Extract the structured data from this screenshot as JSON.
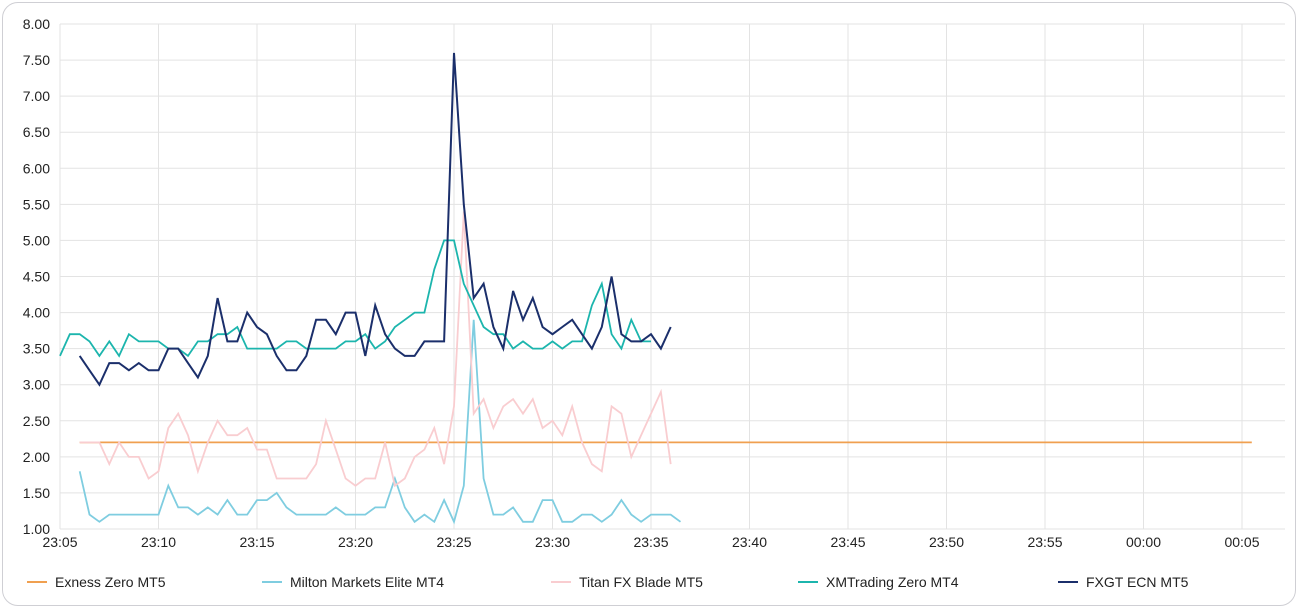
{
  "chart_data": {
    "type": "line",
    "title": "",
    "xlabel": "",
    "ylabel": "",
    "ylim": [
      1.0,
      8.0
    ],
    "y_ticks": [
      "1.00",
      "1.50",
      "2.00",
      "2.50",
      "3.00",
      "3.50",
      "4.00",
      "4.50",
      "5.00",
      "5.50",
      "6.00",
      "6.50",
      "7.00",
      "7.50",
      "8.00"
    ],
    "x_ticks": [
      {
        "label": "23:05",
        "minute": 0
      },
      {
        "label": "23:10",
        "minute": 5
      },
      {
        "label": "23:15",
        "minute": 10
      },
      {
        "label": "23:20",
        "minute": 15
      },
      {
        "label": "23:25",
        "minute": 20
      },
      {
        "label": "23:30",
        "minute": 25
      },
      {
        "label": "23:35",
        "minute": 30
      },
      {
        "label": "23:40",
        "minute": 35
      },
      {
        "label": "23:45",
        "minute": 40
      },
      {
        "label": "23:50",
        "minute": 45
      },
      {
        "label": "23:55",
        "minute": 50
      },
      {
        "label": "00:00",
        "minute": 55
      },
      {
        "label": "00:05",
        "minute": 60
      }
    ],
    "x_start_minute": 1.0,
    "x_step_minutes": 0.5,
    "x_range_minutes": [
      0,
      61.5
    ],
    "legend_position": "bottom",
    "series": [
      {
        "name": "Exness Zero MT5",
        "color": "#f0a050",
        "values": [
          2.2,
          2.2,
          2.2,
          2.2,
          2.2,
          2.2,
          2.2,
          2.2,
          2.2,
          2.2,
          2.2,
          2.2,
          2.2,
          2.2,
          2.2,
          2.2,
          2.2,
          2.2,
          2.2,
          2.2,
          2.2,
          2.2,
          2.2,
          2.2,
          2.2,
          2.2,
          2.2,
          2.2,
          2.2,
          2.2,
          2.2,
          2.2,
          2.2,
          2.2,
          2.2,
          2.2,
          2.2,
          2.2,
          2.2,
          2.2,
          2.2,
          2.2,
          2.2,
          2.2,
          2.2,
          2.2,
          2.2,
          2.2,
          2.2,
          2.2,
          2.2,
          2.2,
          2.2,
          2.2,
          2.2,
          2.2,
          2.2,
          2.2,
          2.2,
          2.2,
          2.2,
          2.2,
          2.2,
          2.2,
          2.2,
          2.2,
          2.2,
          2.2,
          2.2,
          2.2,
          2.2,
          2.2,
          2.2,
          2.2,
          2.2,
          2.2,
          2.2,
          2.2,
          2.2,
          2.2,
          2.2,
          2.2,
          2.2,
          2.2,
          2.2,
          2.2,
          2.2,
          2.2,
          2.2,
          2.2,
          2.2,
          2.2,
          2.2,
          2.2,
          2.2,
          2.2,
          2.2,
          2.2,
          2.2,
          2.2,
          2.2,
          2.2,
          2.2,
          2.2,
          2.2,
          2.2,
          2.2,
          2.2,
          2.2,
          2.2,
          2.2,
          2.2,
          2.2,
          2.2,
          2.2,
          2.2,
          2.2,
          2.2,
          2.2,
          2.2,
          2.2
        ]
      },
      {
        "name": "Milton Markets Elite MT4",
        "color": "#7fcde0",
        "start_minute": 1.0,
        "values": [
          1.8,
          1.2,
          1.1,
          1.2,
          1.2,
          1.2,
          1.2,
          1.2,
          1.2,
          1.6,
          1.3,
          1.3,
          1.2,
          1.3,
          1.2,
          1.4,
          1.2,
          1.2,
          1.4,
          1.4,
          1.5,
          1.3,
          1.2,
          1.2,
          1.2,
          1.2,
          1.3,
          1.2,
          1.2,
          1.2,
          1.3,
          1.3,
          1.7,
          1.3,
          1.1,
          1.2,
          1.1,
          1.4,
          1.1,
          1.6,
          3.9,
          1.7,
          1.2,
          1.2,
          1.3,
          1.1,
          1.1,
          1.4,
          1.4,
          1.1,
          1.1,
          1.2,
          1.2,
          1.1,
          1.2,
          1.4,
          1.2,
          1.1,
          1.2,
          1.2,
          1.2,
          1.1
        ]
      },
      {
        "name": "Titan FX Blade MT5",
        "color": "#f9cdd0",
        "start_minute": 1.0,
        "values": [
          2.2,
          2.2,
          2.2,
          1.9,
          2.2,
          2.0,
          2.0,
          1.7,
          1.8,
          2.4,
          2.6,
          2.3,
          1.8,
          2.2,
          2.5,
          2.3,
          2.3,
          2.4,
          2.1,
          2.1,
          1.7,
          1.7,
          1.7,
          1.7,
          1.9,
          2.5,
          2.1,
          1.7,
          1.6,
          1.7,
          1.7,
          2.2,
          1.6,
          1.7,
          2.0,
          2.1,
          2.4,
          1.9,
          2.7,
          5.4,
          2.6,
          2.8,
          2.4,
          2.7,
          2.8,
          2.6,
          2.8,
          2.4,
          2.5,
          2.3,
          2.7,
          2.2,
          1.9,
          1.8,
          2.7,
          2.6,
          2.0,
          2.3,
          2.6,
          2.9,
          1.9
        ]
      },
      {
        "name": "XMTrading Zero MT4",
        "color": "#1cb5ad",
        "start_minute": 0.0,
        "values": [
          3.4,
          3.7,
          3.7,
          3.6,
          3.4,
          3.6,
          3.4,
          3.7,
          3.6,
          3.6,
          3.6,
          3.5,
          3.5,
          3.4,
          3.6,
          3.6,
          3.7,
          3.7,
          3.8,
          3.5,
          3.5,
          3.5,
          3.5,
          3.6,
          3.6,
          3.5,
          3.5,
          3.5,
          3.5,
          3.6,
          3.6,
          3.7,
          3.5,
          3.6,
          3.8,
          3.9,
          4.0,
          4.0,
          4.6,
          5.0,
          5.0,
          4.4,
          4.1,
          3.8,
          3.7,
          3.7,
          3.5,
          3.6,
          3.5,
          3.5,
          3.6,
          3.5,
          3.6,
          3.6,
          4.1,
          4.4,
          3.7,
          3.5,
          3.9,
          3.6,
          3.6
        ]
      },
      {
        "name": "FXGT ECN MT5",
        "color": "#1b2f6b",
        "start_minute": 1.0,
        "values": [
          3.4,
          3.2,
          3.0,
          3.3,
          3.3,
          3.2,
          3.3,
          3.2,
          3.2,
          3.5,
          3.5,
          3.3,
          3.1,
          3.4,
          4.2,
          3.6,
          3.6,
          4.0,
          3.8,
          3.7,
          3.4,
          3.2,
          3.2,
          3.4,
          3.9,
          3.9,
          3.7,
          4.0,
          4.0,
          3.4,
          4.1,
          3.7,
          3.5,
          3.4,
          3.4,
          3.6,
          3.6,
          3.6,
          7.6,
          5.5,
          4.2,
          4.4,
          3.8,
          3.5,
          4.3,
          3.9,
          4.2,
          3.8,
          3.7,
          3.8,
          3.9,
          3.7,
          3.5,
          3.8,
          4.5,
          3.7,
          3.6,
          3.6,
          3.7,
          3.5,
          3.8
        ]
      }
    ]
  }
}
